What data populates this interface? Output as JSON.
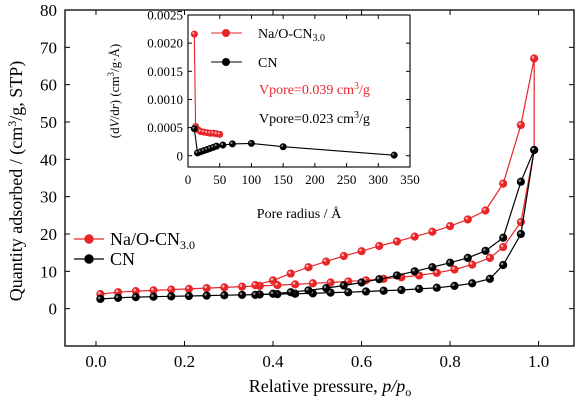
{
  "chart_data": [
    {
      "type": "line",
      "xlabel_main": "Relative pressure, ",
      "xlabel_italic": "p/p",
      "xlabel_sub": "o",
      "ylabel_main": "Quantity adsorbed / (cm",
      "ylabel_sup": "3",
      "ylabel_tail": "/g, STP)",
      "xlim": [
        -0.07,
        1.08
      ],
      "ylim": [
        -10,
        80
      ],
      "xticks": [
        "0.0",
        "0.2",
        "0.4",
        "0.6",
        "0.8",
        "1.0"
      ],
      "xtick_values": [
        0.0,
        0.2,
        0.4,
        0.6,
        0.8,
        1.0
      ],
      "yticks": [
        "0",
        "10",
        "20",
        "30",
        "40",
        "50",
        "60",
        "70",
        "80"
      ],
      "ytick_values": [
        0,
        10,
        20,
        30,
        40,
        50,
        60,
        70,
        80
      ],
      "legend": [
        {
          "label_main": "Na/O-CN",
          "label_sub": "3.0",
          "color": "#e8262a"
        },
        {
          "label_main": "CN",
          "label_sub": "",
          "color": "#000000"
        }
      ],
      "series": [
        {
          "name": "Na/O-CN3.0",
          "color": "#e8262a",
          "x": [
            0.01,
            0.05,
            0.09,
            0.13,
            0.17,
            0.21,
            0.25,
            0.29,
            0.33,
            0.37,
            0.41,
            0.45,
            0.49,
            0.53,
            0.57,
            0.61,
            0.65,
            0.69,
            0.73,
            0.77,
            0.81,
            0.85,
            0.89,
            0.92,
            0.96,
            0.99,
            0.99,
            0.96,
            0.92,
            0.88,
            0.84,
            0.8,
            0.76,
            0.72,
            0.68,
            0.64,
            0.6,
            0.56,
            0.52,
            0.48,
            0.44,
            0.4,
            0.36
          ],
          "y": [
            3.9,
            4.4,
            4.7,
            4.9,
            5.1,
            5.3,
            5.5,
            5.7,
            5.9,
            6.1,
            6.3,
            6.5,
            6.8,
            7.0,
            7.3,
            7.6,
            8.0,
            8.4,
            8.9,
            9.6,
            10.5,
            11.8,
            13.6,
            16.5,
            23.2,
            42.5,
            67.0,
            49.2,
            33.5,
            26.3,
            23.9,
            22.1,
            20.6,
            19.3,
            18.0,
            16.8,
            15.4,
            14.1,
            12.6,
            11.1,
            9.4,
            7.6,
            6.3
          ]
        },
        {
          "name": "CN",
          "color": "#000000",
          "x": [
            0.01,
            0.05,
            0.09,
            0.13,
            0.17,
            0.21,
            0.25,
            0.29,
            0.33,
            0.37,
            0.41,
            0.45,
            0.49,
            0.53,
            0.57,
            0.61,
            0.65,
            0.69,
            0.73,
            0.77,
            0.81,
            0.85,
            0.89,
            0.92,
            0.96,
            0.99,
            0.96,
            0.92,
            0.88,
            0.84,
            0.8,
            0.76,
            0.72,
            0.68,
            0.64,
            0.6,
            0.56,
            0.52,
            0.48,
            0.44,
            0.4,
            0.36
          ],
          "y": [
            2.6,
            2.9,
            3.1,
            3.2,
            3.3,
            3.4,
            3.5,
            3.6,
            3.7,
            3.8,
            3.9,
            4.0,
            4.1,
            4.3,
            4.4,
            4.6,
            4.8,
            5.0,
            5.3,
            5.6,
            6.1,
            6.8,
            8.0,
            11.7,
            20.0,
            42.5,
            34.0,
            19.0,
            15.5,
            13.6,
            12.3,
            11.1,
            10.0,
            8.9,
            7.9,
            7.0,
            6.2,
            5.5,
            4.9,
            4.4,
            4.0,
            3.7
          ]
        }
      ]
    },
    {
      "type": "line",
      "xlabel": "Pore radius / Å",
      "ylabel_main": "(d",
      "ylabel_italic": "V",
      "ylabel_mid": "/d",
      "ylabel_italic2": "r",
      "ylabel_tail": ") (cm",
      "ylabel_sup": "3",
      "ylabel_end": "/g·Å)",
      "xlim": [
        0,
        350
      ],
      "ylim": [
        -0.0002,
        0.0025
      ],
      "xticks": [
        "0",
        "50",
        "100",
        "150",
        "200",
        "250",
        "300",
        "350"
      ],
      "xtick_values": [
        0,
        50,
        100,
        150,
        200,
        250,
        300,
        350
      ],
      "yticks": [
        "0",
        "0.0005",
        "0.0010",
        "0.0015",
        "0.0020",
        "0.0025"
      ],
      "ytick_values": [
        0,
        0.0005,
        0.001,
        0.0015,
        0.002,
        0.0025
      ],
      "legend": [
        {
          "label_main": "Na/O-CN",
          "label_sub": "3.0",
          "color": "#e8262a"
        },
        {
          "label_main": "CN",
          "label_sub": "",
          "color": "#000000"
        }
      ],
      "annotations": [
        {
          "text_main": "Vpore=0.039 cm",
          "sup": "3",
          "tail": "/g",
          "color": "#e8262a"
        },
        {
          "text_main": "Vpore=0.023 cm",
          "sup": "3",
          "tail": "/g",
          "color": "#000000"
        }
      ],
      "series": [
        {
          "name": "Na/O-CN3.0",
          "color": "#e8262a",
          "x": [
            10,
            12,
            16,
            20,
            25,
            30,
            35,
            40,
            45,
            50
          ],
          "y": [
            0.00216,
            0.00052,
            0.00046,
            0.00043,
            0.00042,
            0.00041,
            0.0004,
            0.0004,
            0.00039,
            0.00038
          ]
        },
        {
          "name": "CN",
          "color": "#000000",
          "x": [
            10,
            15,
            20,
            25,
            30,
            35,
            40,
            45,
            55,
            70,
            100,
            150,
            325
          ],
          "y": [
            0.00048,
            5e-05,
            7e-05,
            9e-05,
            0.00011,
            0.00013,
            0.00015,
            0.00017,
            0.00019,
            0.00021,
            0.00022,
            0.00016,
            1e-05
          ]
        }
      ]
    }
  ]
}
